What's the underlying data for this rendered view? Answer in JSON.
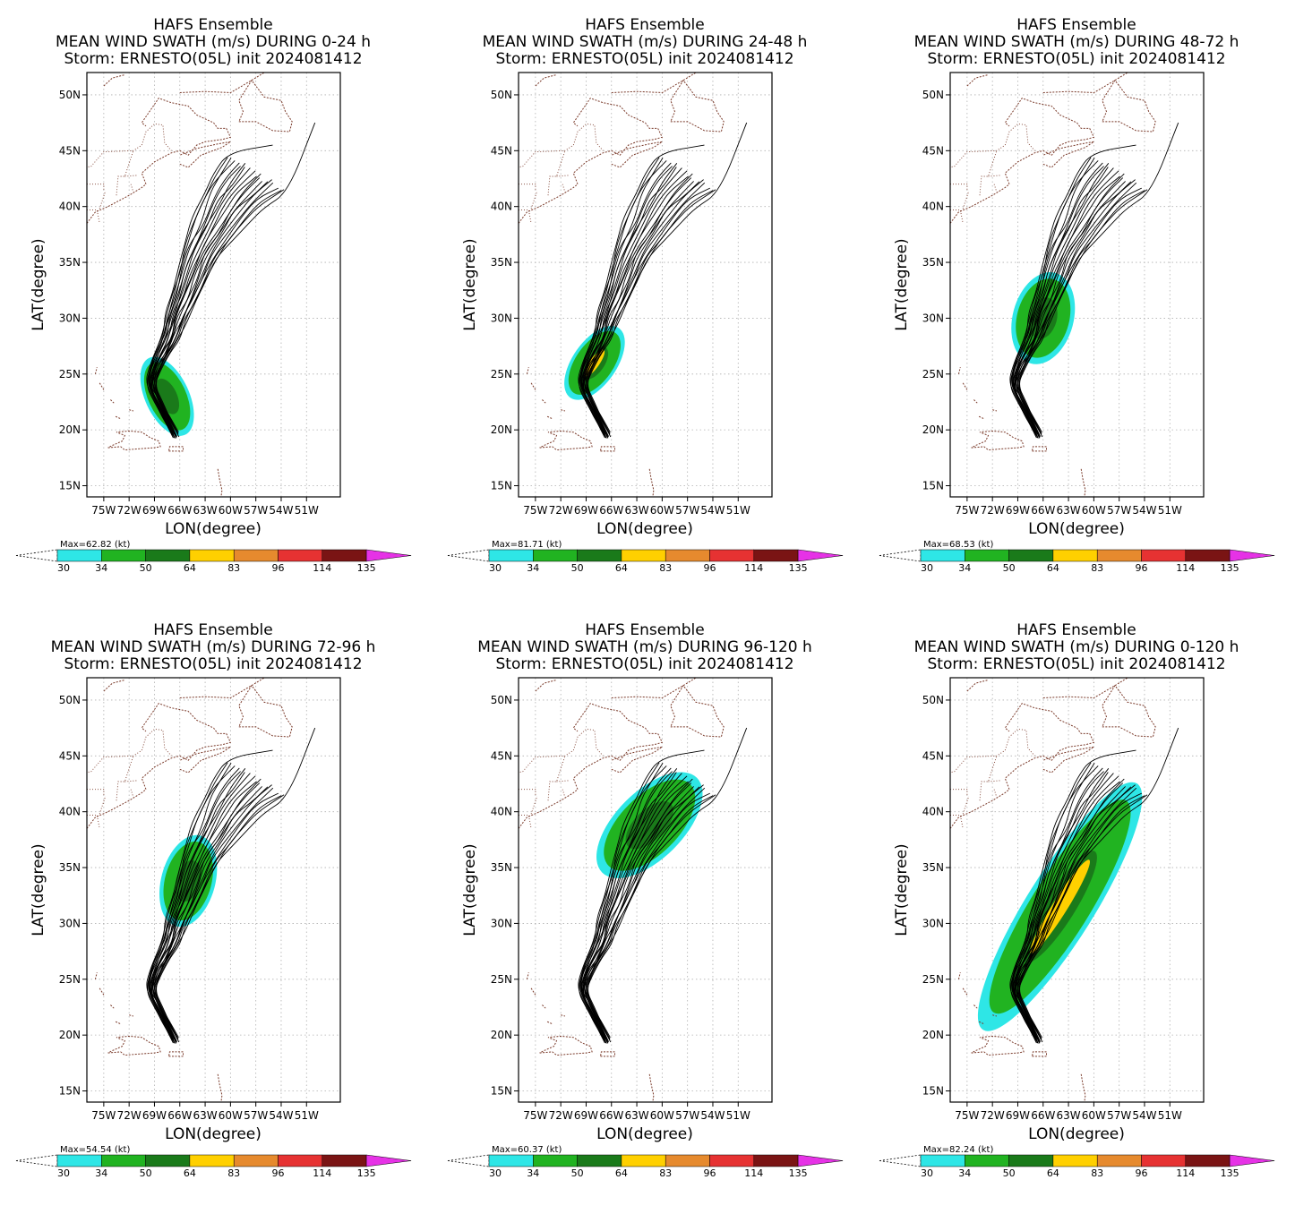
{
  "figure": {
    "suptitle": "HAFS Ensemble",
    "storm_line": "Storm: ERNESTO(05L) init 2024081412",
    "xlabel": "LON(degree)",
    "ylabel": "LAT(degree)",
    "lat_ticks": [
      "15N",
      "20N",
      "25N",
      "30N",
      "35N",
      "40N",
      "45N",
      "50N"
    ],
    "lon_ticks": [
      "75W",
      "72W",
      "69W",
      "66W",
      "63W",
      "60W",
      "57W",
      "54W",
      "51W"
    ],
    "colorbar_ticks": [
      "30",
      "34",
      "50",
      "64",
      "83",
      "96",
      "114",
      "135"
    ],
    "colorbar_colors": [
      "#2ee6e6",
      "#21b321",
      "#1a7a1a",
      "#ffd000",
      "#e68a2e",
      "#e63232",
      "#7a1414",
      "#e632e6"
    ],
    "colors": {
      "track": "#000000",
      "coast": "#7a3a2a",
      "grid": "#b0b0b0"
    }
  },
  "panels": [
    {
      "subtitle": "MEAN WIND SWATH (m/s) DURING  0-24 h",
      "max_label": "Max=62.82 (kt)"
    },
    {
      "subtitle": "MEAN WIND SWATH (m/s) DURING 24-48 h",
      "max_label": "Max=81.71 (kt)"
    },
    {
      "subtitle": "MEAN WIND SWATH (m/s) DURING 48-72 h",
      "max_label": "Max=68.53 (kt)"
    },
    {
      "subtitle": "MEAN WIND SWATH (m/s) DURING 72-96 h",
      "max_label": "Max=54.54 (kt)"
    },
    {
      "subtitle": "MEAN WIND SWATH (m/s) DURING 96-120 h",
      "max_label": "Max=60.37 (kt)"
    },
    {
      "subtitle": "MEAN WIND SWATH (m/s) DURING 0-120 h",
      "max_label": "Max=82.24 (kt)"
    }
  ],
  "chart_data": {
    "type": "map",
    "lon_range": [
      -77,
      -47
    ],
    "lat_range": [
      14,
      52
    ],
    "tracks_mean": [
      [
        -66.5,
        19.5
      ],
      [
        -67.5,
        21
      ],
      [
        -68.5,
        22.5
      ],
      [
        -69.5,
        24
      ],
      [
        -69,
        25.5
      ],
      [
        -68,
        27
      ],
      [
        -67,
        28.5
      ],
      [
        -66.5,
        30
      ],
      [
        -65.5,
        32
      ],
      [
        -64.5,
        34
      ],
      [
        -63.5,
        36
      ],
      [
        -62,
        38
      ],
      [
        -60.5,
        40
      ],
      [
        -59,
        41.5
      ],
      [
        -57,
        43
      ]
    ],
    "swaths": [
      {
        "lon": -67.5,
        "lat": 23,
        "rx": 2.6,
        "ry": 3.8,
        "rot": -25
      },
      {
        "lon": -68,
        "lat": 26,
        "rx": 2.6,
        "ry": 3.8,
        "rot": 35
      },
      {
        "lon": -66,
        "lat": 30,
        "rx": 3.6,
        "ry": 4.2,
        "rot": 15
      },
      {
        "lon": -65,
        "lat": 33.8,
        "rx": 3.2,
        "ry": 4.2,
        "rot": 15
      },
      {
        "lon": -61.5,
        "lat": 38.8,
        "rx": 4,
        "ry": 6,
        "rot": 45
      },
      {
        "lon": -64,
        "lat": 31.5,
        "rx": 4,
        "ry": 13,
        "rot": 32
      }
    ]
  }
}
